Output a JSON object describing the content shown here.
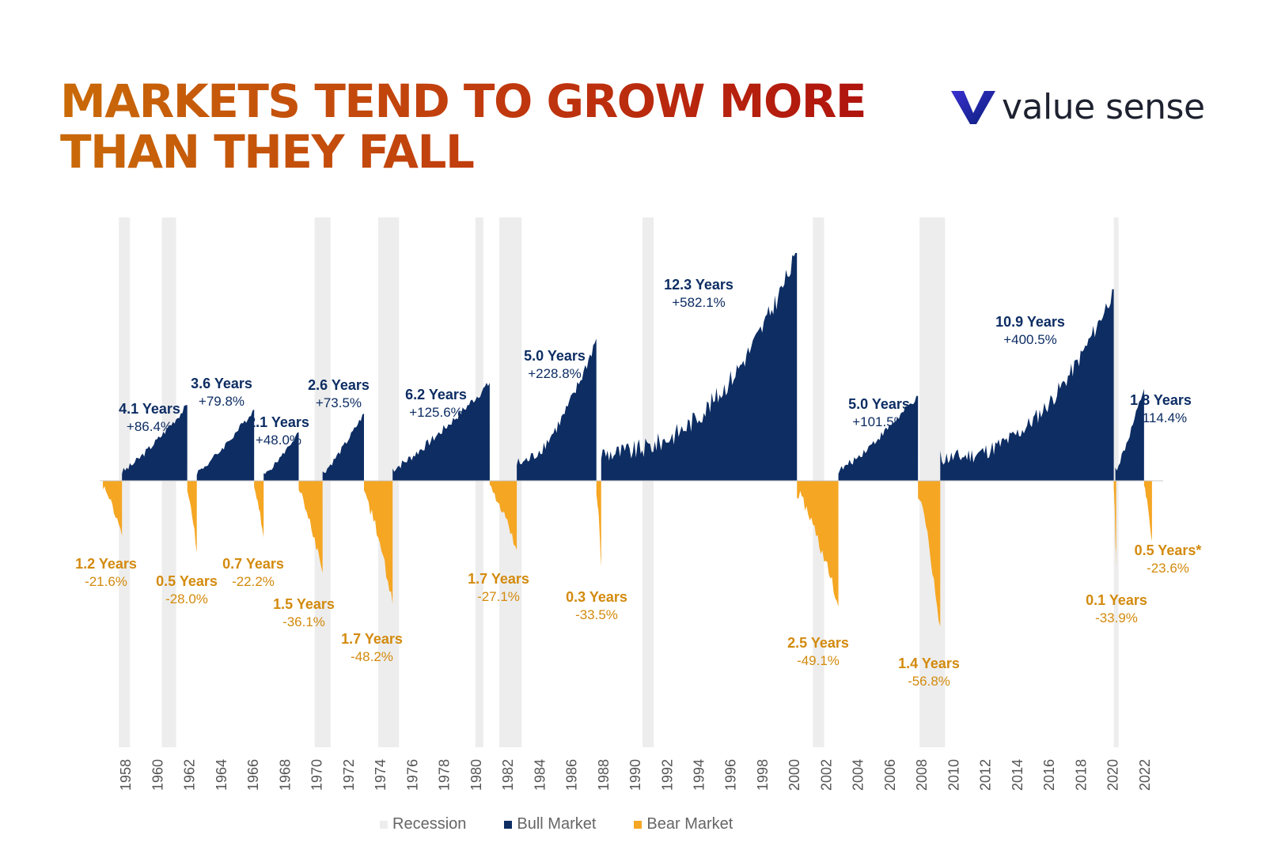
{
  "title_line1": "MARKETS TEND TO GROW MORE",
  "title_line2": "THAN THEY FALL",
  "logo_text": "value sense",
  "colors": {
    "bull": "#0d2d63",
    "bear": "#f5a623",
    "recession": "#ededed",
    "bear_label": "#d38a0d",
    "title_start": "#c96a08",
    "title_end": "#b0140e"
  },
  "chart_data": {
    "type": "area",
    "x_ticks": [
      "1958",
      "1960",
      "1962",
      "1964",
      "1966",
      "1968",
      "1970",
      "1972",
      "1974",
      "1976",
      "1978",
      "1980",
      "1982",
      "1984",
      "1986",
      "1988",
      "1990",
      "1992",
      "1994",
      "1996",
      "1998",
      "2000",
      "2002",
      "2004",
      "2006",
      "2008",
      "2010",
      "2012",
      "2014",
      "2016",
      "2018",
      "2020",
      "2022"
    ],
    "xlim": [
      1956.4,
      2023.2
    ],
    "recessions": [
      [
        1957.6,
        1958.3
      ],
      [
        1960.3,
        1961.2
      ],
      [
        1969.9,
        1970.9
      ],
      [
        1973.9,
        1975.2
      ],
      [
        1980.0,
        1980.5
      ],
      [
        1981.5,
        1982.9
      ],
      [
        1990.5,
        1991.2
      ],
      [
        2001.2,
        2001.9
      ],
      [
        2007.9,
        2009.5
      ],
      [
        2020.1,
        2020.4
      ]
    ],
    "bull_markets": [
      {
        "start": 1957.8,
        "end": 1961.9,
        "duration": "4.1 Years",
        "return_pct": 86.4,
        "label": "+86.4%"
      },
      {
        "start": 1962.5,
        "end": 1966.1,
        "duration": "3.6 Years",
        "return_pct": 79.8,
        "label": "+79.8%"
      },
      {
        "start": 1966.7,
        "end": 1968.9,
        "duration": "2.1 Years",
        "return_pct": 48.0,
        "label": "+48.0%"
      },
      {
        "start": 1970.4,
        "end": 1973.0,
        "duration": "2.6 Years",
        "return_pct": 73.5,
        "label": "+73.5%"
      },
      {
        "start": 1974.8,
        "end": 1980.9,
        "duration": "6.2 Years",
        "return_pct": 125.6,
        "label": "+125.6%"
      },
      {
        "start": 1982.6,
        "end": 1987.6,
        "duration": "5.0 Years",
        "return_pct": 228.8,
        "label": "+228.8%"
      },
      {
        "start": 1987.9,
        "end": 2000.2,
        "duration": "12.3 Years",
        "return_pct": 582.1,
        "label": "+582.1%"
      },
      {
        "start": 2002.8,
        "end": 2007.8,
        "duration": "5.0 Years",
        "return_pct": 101.5,
        "label": "+101.5%"
      },
      {
        "start": 2009.2,
        "end": 2020.1,
        "duration": "10.9 Years",
        "return_pct": 400.5,
        "label": "+400.5%"
      },
      {
        "start": 2020.2,
        "end": 2022.0,
        "duration": "1.8 Years",
        "return_pct": 114.4,
        "label": "+114.4%"
      }
    ],
    "bear_markets": [
      {
        "start": 1956.6,
        "end": 1957.8,
        "duration": "1.2 Years",
        "return_pct": -21.6,
        "label": "-21.6%"
      },
      {
        "start": 1961.9,
        "end": 1962.5,
        "duration": "0.5 Years",
        "return_pct": -28.0,
        "label": "-28.0%"
      },
      {
        "start": 1966.1,
        "end": 1966.7,
        "duration": "0.7 Years",
        "return_pct": -22.2,
        "label": "-22.2%"
      },
      {
        "start": 1968.9,
        "end": 1970.4,
        "duration": "1.5 Years",
        "return_pct": -36.1,
        "label": "-36.1%"
      },
      {
        "start": 1973.0,
        "end": 1974.8,
        "duration": "1.7 Years",
        "return_pct": -48.2,
        "label": "-48.2%"
      },
      {
        "start": 1980.9,
        "end": 1982.6,
        "duration": "1.7 Years",
        "return_pct": -27.1,
        "label": "-27.1%"
      },
      {
        "start": 1987.6,
        "end": 1987.9,
        "duration": "0.3 Years",
        "return_pct": -33.5,
        "label": "-33.5%"
      },
      {
        "start": 2000.2,
        "end": 2002.8,
        "duration": "2.5 Years",
        "return_pct": -49.1,
        "label": "-49.1%"
      },
      {
        "start": 2007.8,
        "end": 2009.2,
        "duration": "1.4 Years",
        "return_pct": -56.8,
        "label": "-56.8%"
      },
      {
        "start": 2020.1,
        "end": 2020.2,
        "duration": "0.1 Years",
        "return_pct": -33.9,
        "label": "-33.9%"
      },
      {
        "start": 2022.0,
        "end": 2022.5,
        "duration": "0.5 Years*",
        "return_pct": -23.6,
        "label": "-23.6%"
      }
    ],
    "legend": [
      {
        "label": "Recession",
        "color": "#ededed"
      },
      {
        "label": "Bull Market",
        "color": "#0d2d63"
      },
      {
        "label": "Bear Market",
        "color": "#f5a623"
      }
    ],
    "legend_position": "bottom",
    "grid": false
  }
}
